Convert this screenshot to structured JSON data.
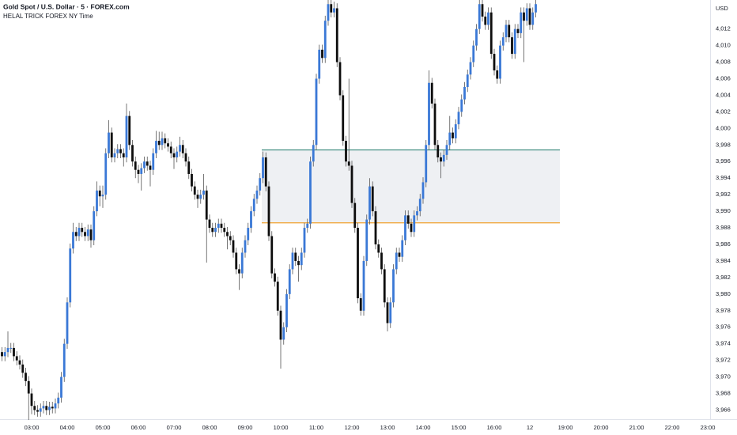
{
  "chart_data": {
    "type": "candlestick",
    "title": "Gold Spot / U.S. Dollar · 5 · FOREX.com",
    "subtitle": "HELAL TRICK FOREX NY Time",
    "y_unit": "USD",
    "up_color": "#3a78d6",
    "down_color": "#0d0d0d",
    "wick_color": "#555555",
    "categories": [
      null,
      null,
      null,
      null,
      null,
      null,
      null,
      null,
      null,
      null,
      "03:00",
      null,
      null,
      null,
      null,
      null,
      null,
      null,
      null,
      null,
      null,
      null,
      "04:00",
      null,
      null,
      null,
      null,
      null,
      null,
      null,
      null,
      null,
      null,
      null,
      "05:00",
      null,
      null,
      null,
      null,
      null,
      null,
      null,
      null,
      null,
      null,
      null,
      "06:00",
      null,
      null,
      null,
      null,
      null,
      null,
      null,
      null,
      null,
      null,
      null,
      "07:00",
      null,
      null,
      null,
      null,
      null,
      null,
      null,
      null,
      null,
      null,
      null,
      "08:00",
      null,
      null,
      null,
      null,
      null,
      null,
      null,
      null,
      null,
      null,
      null,
      "09:00",
      null,
      null,
      null,
      null,
      null,
      null,
      null,
      null,
      null,
      null,
      null,
      "10:00",
      null,
      null,
      null,
      null,
      null,
      null,
      null,
      null,
      null,
      null,
      null,
      "11:00",
      null,
      null,
      null,
      null,
      null,
      null,
      null,
      null,
      null,
      null,
      null,
      "12:00",
      null,
      null,
      null,
      null,
      null,
      null,
      null,
      null,
      null,
      null,
      null,
      "13:00",
      null,
      null,
      null,
      null,
      null,
      null,
      null,
      null,
      null,
      null,
      null,
      "14:00",
      null,
      null,
      null,
      null,
      null,
      null,
      null,
      null,
      null,
      null,
      null,
      "15:00",
      null,
      null,
      null,
      null,
      null,
      null,
      null,
      null,
      null,
      null,
      null,
      "16:00",
      null,
      null,
      null,
      null,
      null,
      null,
      null,
      null,
      null,
      null,
      null,
      "12",
      null,
      null,
      null,
      null,
      null,
      null,
      null,
      null,
      null,
      null,
      null,
      "19:00",
      null,
      null,
      null,
      null,
      null,
      null,
      null,
      null,
      null,
      null,
      null,
      "20:00",
      null,
      null,
      null,
      null,
      null,
      null,
      null,
      null,
      null,
      null,
      null,
      "21:00",
      null,
      null,
      null,
      null,
      null,
      null,
      null,
      null,
      null,
      null,
      null,
      "22:00",
      null,
      null,
      null,
      null,
      null,
      null,
      null,
      null,
      null,
      null,
      null,
      "23:00",
      null
    ],
    "open": [
      3973,
      3972.5,
      3973,
      3973.5,
      3973.5,
      3972.5,
      3972,
      3971.5,
      3970.5,
      3969.5,
      3968,
      3966.5,
      3966,
      3965.8,
      3966.2,
      3966.5,
      3966,
      3966.4,
      3966.2,
      3966.8,
      3967.5,
      3970,
      3974,
      3979,
      3985.5,
      3987.5,
      3987,
      3988,
      3987.5,
      3987,
      3987.8,
      3986.5,
      3990,
      3992.5,
      3991.8,
      3992,
      3997,
      3999.5,
      3996.5,
      3997,
      3997.5,
      3997,
      3996.5,
      4001.5,
      3998,
      3996,
      3995,
      3994.5,
      3995.2,
      3996,
      3995.5,
      3995,
      3997,
      3998.5,
      3998,
      3998.8,
      3998.2,
      3997.8,
      3997,
      3996.5,
      3997.2,
      3998,
      3997,
      3996,
      3994.5,
      3993,
      3992,
      3991.5,
      3992,
      3992.5,
      3989,
      3988,
      3987.5,
      3988,
      3988.5,
      3988,
      3987.5,
      3987,
      3986.5,
      3985,
      3983,
      3982.5,
      3985,
      3986.5,
      3988,
      3990,
      3991.5,
      3992.5,
      3994,
      3996.5,
      3993,
      3987,
      3982.5,
      3981.5,
      3978,
      3974.5,
      3976,
      3980,
      3983,
      3985,
      3984,
      3983.5,
      3985,
      3988,
      3988.5,
      3996,
      3998,
      4006,
      4009.5,
      4008.5,
      4013,
      4015,
      4014,
      4014.5,
      4008,
      4004,
      3998.5,
      3996,
      3995.5,
      3991,
      3988,
      3979.5,
      3978,
      3984,
      3989,
      3993,
      3990,
      3986,
      3985,
      3983,
      3979,
      3976.5,
      3979,
      3983,
      3985,
      3984.5,
      3986.5,
      3989.5,
      3988.5,
      3987.5,
      3989.5,
      3990,
      3991.5,
      3993.5,
      3998,
      4005.5,
      4003,
      3998,
      3996.5,
      3996,
      3996.8,
      3998,
      3999.5,
      3998.8,
      4000.5,
      4002,
      4003.5,
      4005,
      4006.5,
      4008,
      4010,
      4012,
      4015,
      4013.5,
      4012.5,
      4014,
      4009,
      4007,
      4006,
      4010,
      4011,
      4012.5,
      4011,
      4009,
      4012,
      4011.5,
      4014,
      4013,
      4014.5,
      4012.5,
      4014,
      null,
      null,
      null,
      null,
      null,
      null,
      null,
      null,
      null,
      null,
      null,
      null,
      null,
      null,
      null,
      null,
      null,
      null,
      null,
      null,
      null,
      null,
      null,
      null,
      null,
      null,
      null,
      null,
      null,
      null,
      null,
      null,
      null,
      null,
      null,
      null,
      null,
      null,
      null,
      null,
      null,
      null,
      null,
      null,
      null,
      null,
      null,
      null,
      null,
      null,
      null,
      null,
      null,
      null,
      null,
      null,
      null,
      null,
      null
    ],
    "high": [
      3973.6,
      3973.6,
      3975.5,
      3974.1,
      3974.1,
      3973.1,
      3972.6,
      3972.1,
      3971.1,
      3970.1,
      3968.6,
      3967.1,
      3966.6,
      3966.8,
      3967.1,
      3967.1,
      3967,
      3967,
      3967.4,
      3968.1,
      3970.6,
      3974.6,
      3979.6,
      3986.1,
      3988.6,
      3988.1,
      3988.6,
      3988.6,
      3988.1,
      3988.4,
      3988.4,
      3990.6,
      3993.6,
      3993.1,
      3993.1,
      3997.6,
      4001,
      4000.1,
      3997.6,
      3998.1,
      3998.1,
      3997.6,
      4003,
      4002.1,
      3998.6,
      3996.6,
      3995.6,
      3995.8,
      3996.6,
      3996.6,
      3996.1,
      3997.6,
      3999.7,
      3999.6,
      3999.6,
      3999.4,
      3998.8,
      3998.4,
      3997.6,
      3997.8,
      3999,
      3998.6,
      3997.6,
      3996.6,
      3995.1,
      3993.6,
      3992.6,
      3992.6,
      3994.5,
      3993.1,
      3989.6,
      3988.6,
      3988.6,
      3989.1,
      3989.1,
      3988.6,
      3988.1,
      3987.6,
      3987.1,
      3985.6,
      3983.6,
      3985.6,
      3987.1,
      3988.6,
      3990.6,
      3992.1,
      3993.1,
      3994.6,
      3997.2,
      3997.1,
      3993.6,
      3987.6,
      3983.1,
      3982.1,
      3978.6,
      3976.6,
      3980.6,
      3983.6,
      3985.6,
      3985.6,
      3984.6,
      3985.6,
      3988.6,
      3989.1,
      3996.6,
      3998.6,
      4006.6,
      4010.1,
      4010.1,
      4013.6,
      4015.5,
      4015.5,
      4015.3,
      4015.1,
      4008.6,
      4004.6,
      3999.1,
      4006,
      3996.1,
      3991.6,
      3988.6,
      3980.1,
      3984.6,
      3989.6,
      3994,
      3993.6,
      3990.6,
      3986.6,
      3985.6,
      3983.6,
      3979.6,
      3979.6,
      3983.6,
      3985.6,
      3985.6,
      3987.1,
      3990.1,
      3990.1,
      3989.1,
      3990.1,
      3990.6,
      3992.1,
      3994.1,
      3998.6,
      4007,
      4006.1,
      4003.6,
      3998.6,
      3997.1,
      3997.4,
      3998.6,
      4001.5,
      4000.1,
      4001.1,
      4002.6,
      4004.1,
      4005.6,
      4007.1,
      4008.6,
      4010.6,
      4012.6,
      4015.5,
      4015.5,
      4014.1,
      4014.6,
      4014.6,
      4009.6,
      4007.6,
      4010.6,
      4011.6,
      4013.1,
      4013.1,
      4011.6,
      4012.6,
      4012.6,
      4014.6,
      4014.6,
      4015.1,
      4015.1,
      4014.6,
      4015.5,
      null,
      null,
      null,
      null,
      null,
      null,
      null,
      null,
      null,
      null,
      null,
      null,
      null,
      null,
      null,
      null,
      null,
      null,
      null,
      null,
      null,
      null,
      null,
      null,
      null,
      null,
      null,
      null,
      null,
      null,
      null,
      null,
      null,
      null,
      null,
      null,
      null,
      null,
      null,
      null,
      null,
      null,
      null,
      null,
      null,
      null,
      null,
      null,
      null,
      null,
      null,
      null,
      null,
      null,
      null,
      null,
      null,
      null,
      null
    ],
    "low": [
      3971.9,
      3971.9,
      3972.4,
      3972.9,
      3971.9,
      3971.4,
      3970.9,
      3969.9,
      3968.9,
      3964.8,
      3965.5,
      3965.4,
      3965.2,
      3965.2,
      3965.6,
      3965.4,
      3965.4,
      3965.6,
      3965.6,
      3966.2,
      3966.9,
      3969.4,
      3973.4,
      3978.4,
      3984.9,
      3986.4,
      3986.4,
      3986.9,
      3986.4,
      3986.4,
      3985.6,
      3985.9,
      3989.4,
      3990.6,
      3990.4,
      3991.4,
      3996.4,
      3995.9,
      3995.9,
      3996.4,
      3996.4,
      3995.4,
      3995.9,
      3997.4,
      3995.4,
      3994,
      3993.4,
      3992.5,
      3994.6,
      3994.9,
      3993,
      3994.4,
      3996.4,
      3997.4,
      3997.4,
      3997.6,
      3997.2,
      3996.4,
      3995.1,
      3995.9,
      3996.6,
      3996.4,
      3995.4,
      3993.9,
      3992.4,
      3991.4,
      3990.4,
      3990.9,
      3991.4,
      3983.8,
      3987.4,
      3986.9,
      3986.9,
      3987.4,
      3987.4,
      3986.9,
      3985.4,
      3985.9,
      3984.4,
      3982.4,
      3980.5,
      3981.9,
      3984.4,
      3985.9,
      3987.4,
      3989.4,
      3990.9,
      3991.9,
      3993.4,
      3992.4,
      3986.4,
      3981.9,
      3980.9,
      3977.4,
      3971,
      3973.9,
      3975.4,
      3979.4,
      3982.4,
      3983.4,
      3981.5,
      3982.9,
      3984.4,
      3987.4,
      3987.9,
      3995.4,
      3997.4,
      4005.4,
      4007.9,
      4007.9,
      4012.4,
      4013.4,
      4013.4,
      4007.4,
      4003.4,
      3997.9,
      3995.4,
      3994.9,
      3990.4,
      3987.4,
      3978.9,
      3977.4,
      3977.4,
      3983.4,
      3988.4,
      3989.4,
      3985.4,
      3984.4,
      3982.4,
      3978.4,
      3975.5,
      3975.9,
      3978.4,
      3982.4,
      3983.9,
      3983.9,
      3985.9,
      3987.9,
      3986.9,
      3986.9,
      3988.9,
      3989.4,
      3990.9,
      3992.9,
      3997.4,
      4002.4,
      3997.4,
      3995.9,
      3994,
      3995.4,
      3996.2,
      3997.4,
      3998.2,
      3998.2,
      3999.9,
      4001.4,
      4002.9,
      4004.4,
      4005.9,
      4007.4,
      4009.4,
      4011.4,
      4012.9,
      4011.9,
      4011.9,
      4008.4,
      4006.4,
      4005.4,
      4005.4,
      4009.4,
      4010.4,
      4010.4,
      4008.4,
      4008.4,
      4010.9,
      4010.9,
      4008,
      4012.4,
      4011.9,
      4011.9,
      4013.4,
      null,
      null,
      null,
      null,
      null,
      null,
      null,
      null,
      null,
      null,
      null,
      null,
      null,
      null,
      null,
      null,
      null,
      null,
      null,
      null,
      null,
      null,
      null,
      null,
      null,
      null,
      null,
      null,
      null,
      null,
      null,
      null,
      null,
      null,
      null,
      null,
      null,
      null,
      null,
      null,
      null,
      null,
      null,
      null,
      null,
      null,
      null,
      null,
      null,
      null,
      null,
      null,
      null,
      null,
      null,
      null,
      null,
      null,
      null
    ],
    "close": [
      3972.5,
      3973,
      3973.5,
      3973.5,
      3972.5,
      3972,
      3971.5,
      3970.5,
      3969.5,
      3968,
      3966.5,
      3966,
      3965.8,
      3966.2,
      3966.5,
      3966,
      3966.4,
      3966.2,
      3966.8,
      3967.5,
      3970,
      3974,
      3979,
      3985.5,
      3987.5,
      3987,
      3988,
      3987.5,
      3987,
      3987.8,
      3986.5,
      3990,
      3992.5,
      3991.8,
      3992,
      3997,
      3999.5,
      3996.5,
      3997,
      3997.5,
      3997,
      3996.5,
      4001.5,
      3998,
      3996,
      3995,
      3994.5,
      3995.2,
      3996,
      3995.5,
      3995,
      3997,
      3998.5,
      3998,
      3998.8,
      3998.2,
      3997.8,
      3997,
      3996.5,
      3997.2,
      3998,
      3997,
      3996,
      3994.5,
      3993,
      3992,
      3991.5,
      3992,
      3992.5,
      3989,
      3988,
      3987.5,
      3988,
      3988.5,
      3988,
      3987.5,
      3987,
      3986.5,
      3985,
      3983,
      3982.5,
      3985,
      3986.5,
      3988,
      3990,
      3991.5,
      3992.5,
      3994,
      3996.5,
      3993,
      3987,
      3982.5,
      3981.5,
      3978,
      3974.5,
      3976,
      3980,
      3983,
      3985,
      3984,
      3983.5,
      3985,
      3988,
      3988.5,
      3996,
      3998,
      4006,
      4009.5,
      4008.5,
      4013,
      4015,
      4014,
      4014.5,
      4008,
      4004,
      3998.5,
      3996,
      3995.5,
      3991,
      3988,
      3979.5,
      3978,
      3984,
      3989,
      3993,
      3990,
      3986,
      3985,
      3983,
      3979,
      3976.5,
      3979,
      3983,
      3985,
      3984.5,
      3986.5,
      3989.5,
      3988.5,
      3987.5,
      3989.5,
      3990,
      3991.5,
      3993.5,
      3998,
      4005.5,
      4003,
      3998,
      3996.5,
      3996,
      3996.8,
      3998,
      3999.5,
      3998.8,
      4000.5,
      4002,
      4003.5,
      4005,
      4006.5,
      4008,
      4010,
      4012,
      4015,
      4013.5,
      4012.5,
      4014,
      4009,
      4007,
      4006,
      4010,
      4011,
      4012.5,
      4011,
      4009,
      4012,
      4011.5,
      4014,
      4013,
      4014.5,
      4012.5,
      4014,
      4015,
      null,
      null,
      null,
      null,
      null,
      null,
      null,
      null,
      null,
      null,
      null,
      null,
      null,
      null,
      null,
      null,
      null,
      null,
      null,
      null,
      null,
      null,
      null,
      null,
      null,
      null,
      null,
      null,
      null,
      null,
      null,
      null,
      null,
      null,
      null,
      null,
      null,
      null,
      null,
      null,
      null,
      null,
      null,
      null,
      null,
      null,
      null,
      null,
      null,
      null,
      null,
      null,
      null,
      null,
      null,
      null,
      null,
      null,
      null
    ],
    "ylim": [
      3964.9,
      4015.5
    ],
    "yticks": [
      {
        "value": 3966,
        "label": "3,966"
      },
      {
        "value": 3968,
        "label": "3,968"
      },
      {
        "value": 3970,
        "label": "3,970"
      },
      {
        "value": 3972,
        "label": "3,972"
      },
      {
        "value": 3974,
        "label": "3,974"
      },
      {
        "value": 3976,
        "label": "3,976"
      },
      {
        "value": 3978,
        "label": "3,978"
      },
      {
        "value": 3980,
        "label": "3,980"
      },
      {
        "value": 3982,
        "label": "3,982"
      },
      {
        "value": 3984,
        "label": "3,984"
      },
      {
        "value": 3986,
        "label": "3,986"
      },
      {
        "value": 3988,
        "label": "3,988"
      },
      {
        "value": 3990,
        "label": "3,990"
      },
      {
        "value": 3992,
        "label": "3,992"
      },
      {
        "value": 3994,
        "label": "3,994"
      },
      {
        "value": 3996,
        "label": "3,996"
      },
      {
        "value": 3998,
        "label": "3,998"
      },
      {
        "value": 4000,
        "label": "4,000"
      },
      {
        "value": 4002,
        "label": "4,002"
      },
      {
        "value": 4004,
        "label": "4,004"
      },
      {
        "value": 4006,
        "label": "4,006"
      },
      {
        "value": 4008,
        "label": "4,008"
      },
      {
        "value": 4010,
        "label": "4,010"
      },
      {
        "value": 4012,
        "label": "4,012"
      }
    ],
    "grid": false,
    "zone": {
      "top": 3997.4,
      "bottom": 3988.6,
      "top_color": "#1e7a6a",
      "bottom_color": "#f0a330",
      "fill": "#eef0f3"
    }
  }
}
